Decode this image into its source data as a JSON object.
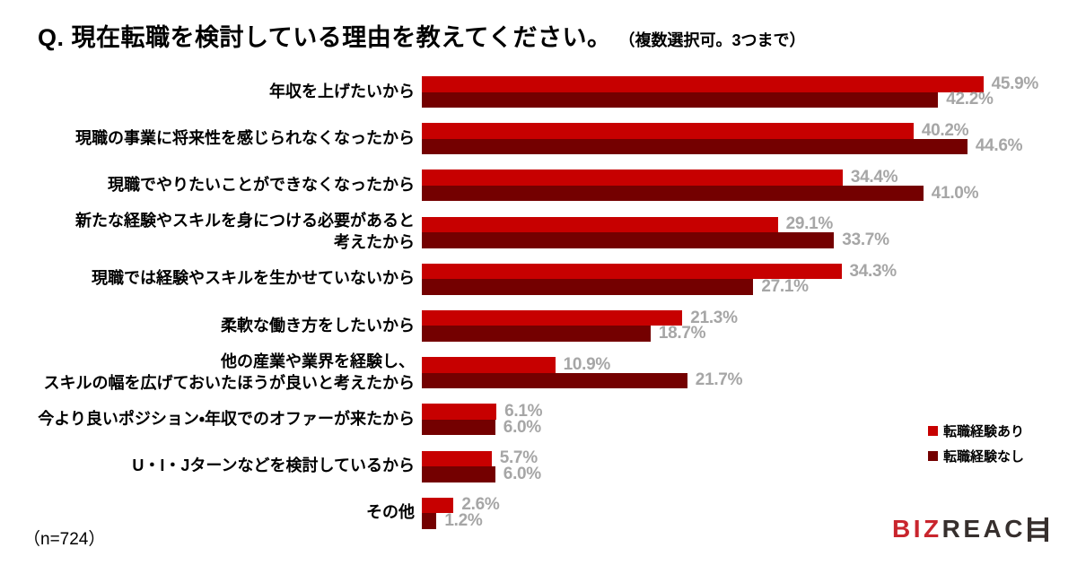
{
  "header": {
    "title": "Q. 現在転職を検討している理由を教えてください。",
    "note": "（複数選択可。3つまで）"
  },
  "legend": {
    "items": [
      {
        "label": "転職経験あり",
        "color": "#c70000"
      },
      {
        "label": "転職経験なし",
        "color": "#740000"
      }
    ]
  },
  "footer": {
    "sample_size": "（n=724）",
    "logo": {
      "part_red": "BIZ",
      "part_dark": "REAC",
      "icon": "ladder-h-icon",
      "red_color": "#c9252d",
      "dark_color": "#362f2d"
    }
  },
  "chart_data": {
    "type": "bar",
    "orientation": "horizontal",
    "unit": "%",
    "xlim": [
      0,
      50
    ],
    "grid": false,
    "legend_position": "right",
    "value_label_color": "#a6a6a6",
    "series_names": [
      "転職経験あり",
      "転職経験なし"
    ],
    "rows": [
      {
        "label_lines": [
          "年収を上げたいから"
        ],
        "values": [
          45.9,
          42.2
        ],
        "value_labels": [
          "45.9%",
          "42.2%"
        ]
      },
      {
        "label_lines": [
          "現職の事業に将来性を感じられなくなったから"
        ],
        "values": [
          40.2,
          44.6
        ],
        "value_labels": [
          "40.2%",
          "44.6%"
        ]
      },
      {
        "label_lines": [
          "現職でやりたいことができなくなったから"
        ],
        "values": [
          34.4,
          41.0
        ],
        "value_labels": [
          "34.4%",
          "41.0%"
        ]
      },
      {
        "label_lines": [
          "新たな経験やスキルを身につける必要があると",
          "考えたから"
        ],
        "values": [
          29.1,
          33.7
        ],
        "value_labels": [
          "29.1%",
          "33.7%"
        ]
      },
      {
        "label_lines": [
          "現職では経験やスキルを生かせていないから"
        ],
        "values": [
          34.3,
          27.1
        ],
        "value_labels": [
          "34.3%",
          "27.1%"
        ]
      },
      {
        "label_lines": [
          "柔軟な働き方をしたいから"
        ],
        "values": [
          21.3,
          18.7
        ],
        "value_labels": [
          "21.3%",
          "18.7%"
        ]
      },
      {
        "label_lines": [
          "他の産業や業界を経験し、",
          "スキルの幅を広げておいたほうが良いと考えたから"
        ],
        "values": [
          10.9,
          21.7
        ],
        "value_labels": [
          "10.9%",
          "21.7%"
        ]
      },
      {
        "label_lines": [
          "今より良いポジション・年収でのオファーが来たから"
        ],
        "values": [
          6.1,
          6.0
        ],
        "value_labels": [
          "6.1%",
          "6.0%"
        ]
      },
      {
        "label_lines": [
          "U・I・Jターンなどを検討しているから"
        ],
        "values": [
          5.7,
          6.0
        ],
        "value_labels": [
          "5.7%",
          "6.0%"
        ]
      },
      {
        "label_lines": [
          "その他"
        ],
        "values": [
          2.6,
          1.2
        ],
        "value_labels": [
          "2.6%",
          "1.2%"
        ]
      }
    ]
  }
}
